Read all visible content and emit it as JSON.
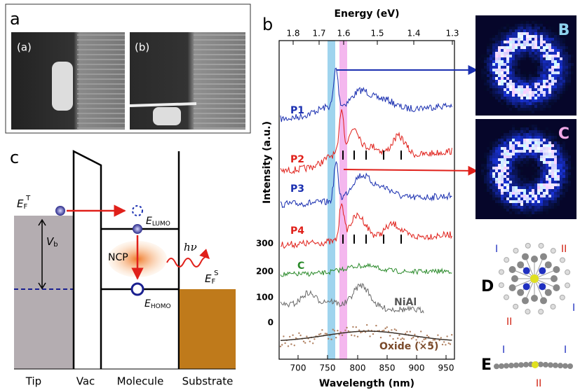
{
  "panel_a": {
    "label": "a",
    "images": [
      "(a)",
      "(b)"
    ]
  },
  "panel_b": {
    "label": "b",
    "top_axis_title": "Energy (eV)",
    "top_ticks": [
      "1.8",
      "1.7",
      "1.6",
      "1.5",
      "1.4",
      "1.3"
    ],
    "y_axis_title": "Intensity (a.u.)",
    "y_ticks": [
      "300",
      "200",
      "100",
      "0"
    ],
    "x_axis_title": "Wavelength (nm)",
    "x_ticks": [
      "700",
      "750",
      "800",
      "850",
      "900",
      "950"
    ],
    "curves": [
      "P1",
      "P2",
      "P3",
      "P4",
      "C",
      "NiAl",
      "Oxide (×5)"
    ],
    "maps": [
      "B",
      "C"
    ],
    "structures": [
      "D",
      "E"
    ],
    "bond_marks": [
      "I",
      "II"
    ]
  },
  "panel_c": {
    "label": "c",
    "tip_fermi": {
      "symbol": "E",
      "sub": "F",
      "sup": "T"
    },
    "bias": {
      "symbol": "V",
      "sub": "b"
    },
    "lumo": {
      "symbol": "E",
      "sub": "LUMO"
    },
    "homo": {
      "symbol": "E",
      "sub": "HOMO"
    },
    "substrate_fermi": {
      "symbol": "E",
      "sub": "F",
      "sup": "S"
    },
    "plasmon": "NCP",
    "photon": "hν",
    "regions": [
      "Tip",
      "Vac",
      "Molecule",
      "Substrate"
    ]
  }
}
